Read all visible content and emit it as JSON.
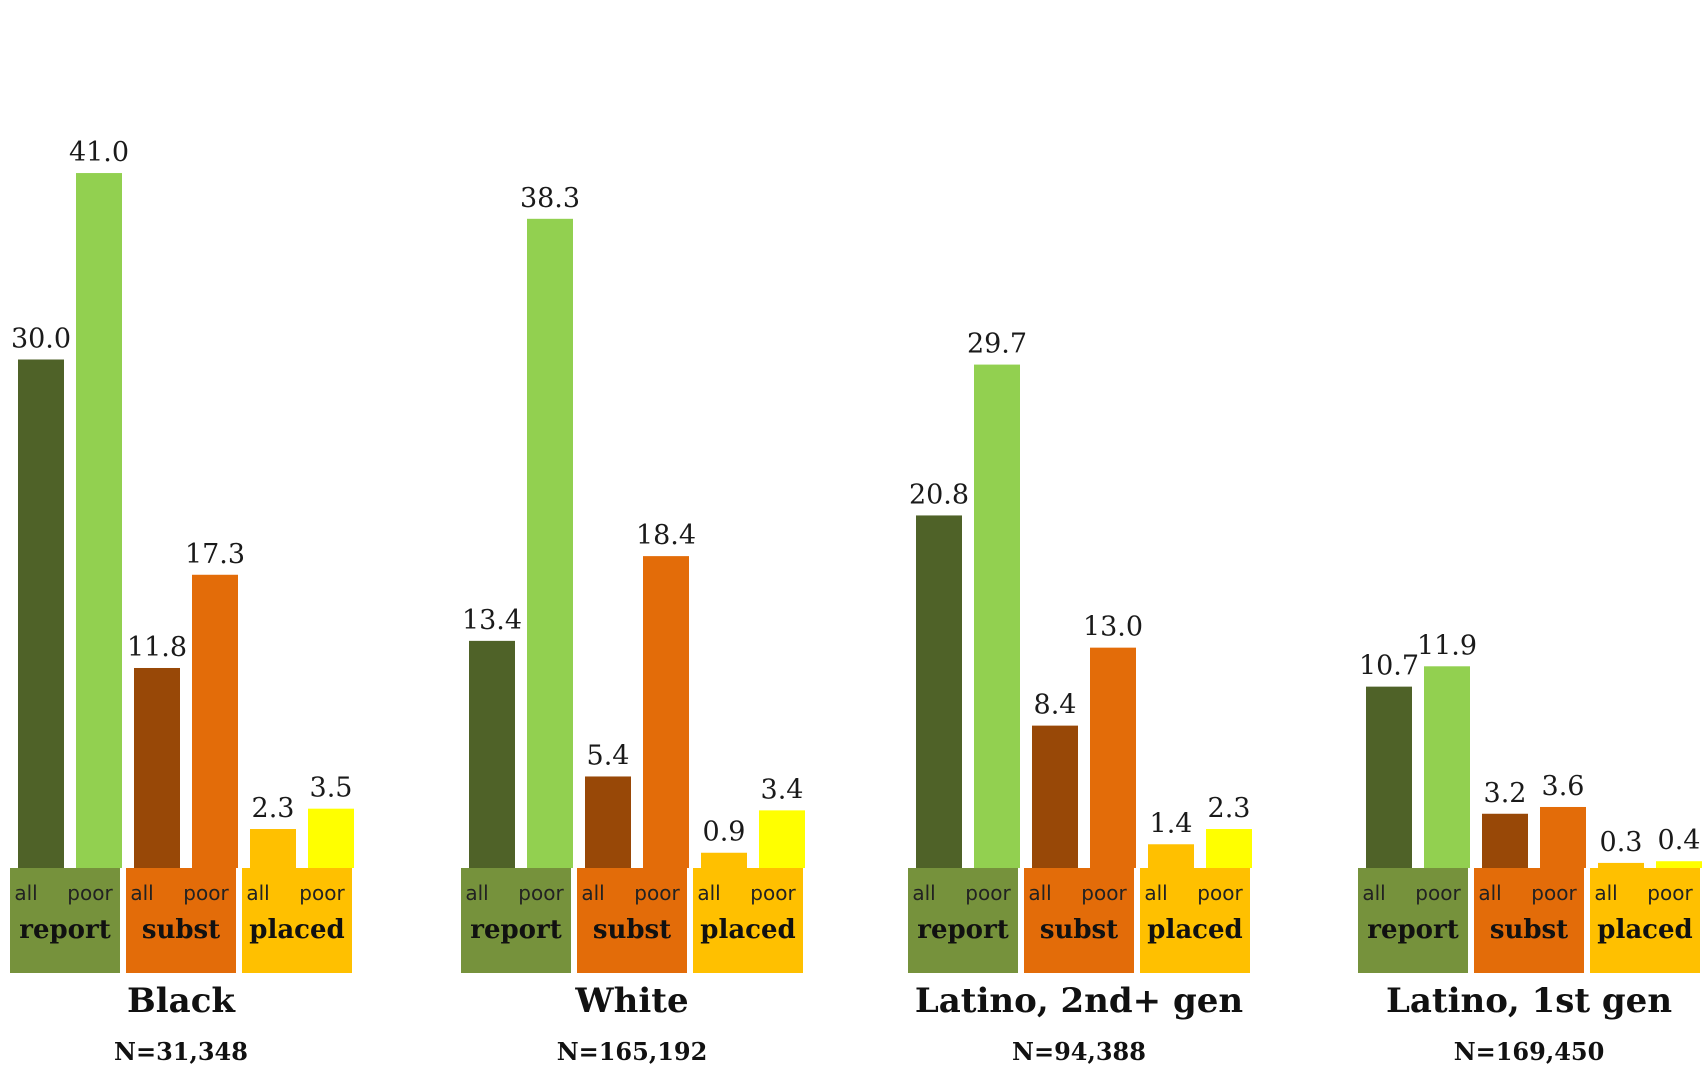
{
  "chart_data": {
    "type": "bar",
    "series": [
      {
        "name": "report",
        "colors": {
          "all": "#4f6228",
          "poor": "#92d050",
          "box": "#76923c"
        }
      },
      {
        "name": "subst",
        "colors": {
          "all": "#984807",
          "poor": "#e36c09",
          "box": "#e36c09"
        }
      },
      {
        "name": "placed",
        "colors": {
          "all": "#ffc000",
          "poor": "#ffff00",
          "box": "#ffc000"
        }
      }
    ],
    "sublabels": {
      "all": "all",
      "poor": "poor"
    },
    "groups": [
      {
        "name": "Black",
        "n": "N=31,348",
        "values": {
          "report": {
            "all": 30.0,
            "poor": 41.0
          },
          "subst": {
            "all": 11.8,
            "poor": 17.3
          },
          "placed": {
            "all": 2.3,
            "poor": 3.5
          }
        }
      },
      {
        "name": "White",
        "n": "N=165,192",
        "values": {
          "report": {
            "all": 13.4,
            "poor": 38.3
          },
          "subst": {
            "all": 5.4,
            "poor": 18.4
          },
          "placed": {
            "all": 0.9,
            "poor": 3.4
          }
        }
      },
      {
        "name": "Latino, 2nd+ gen",
        "n": "N=94,388",
        "values": {
          "report": {
            "all": 20.8,
            "poor": 29.7
          },
          "subst": {
            "all": 8.4,
            "poor": 13.0
          },
          "placed": {
            "all": 1.4,
            "poor": 2.3
          }
        }
      },
      {
        "name": "Latino, 1st gen",
        "n": "N=169,450",
        "values": {
          "report": {
            "all": 10.7,
            "poor": 11.9
          },
          "subst": {
            "all": 3.2,
            "poor": 3.6
          },
          "placed": {
            "all": 0.3,
            "poor": 0.4
          }
        }
      }
    ],
    "ylim": [
      0,
      41
    ],
    "grid": false
  }
}
